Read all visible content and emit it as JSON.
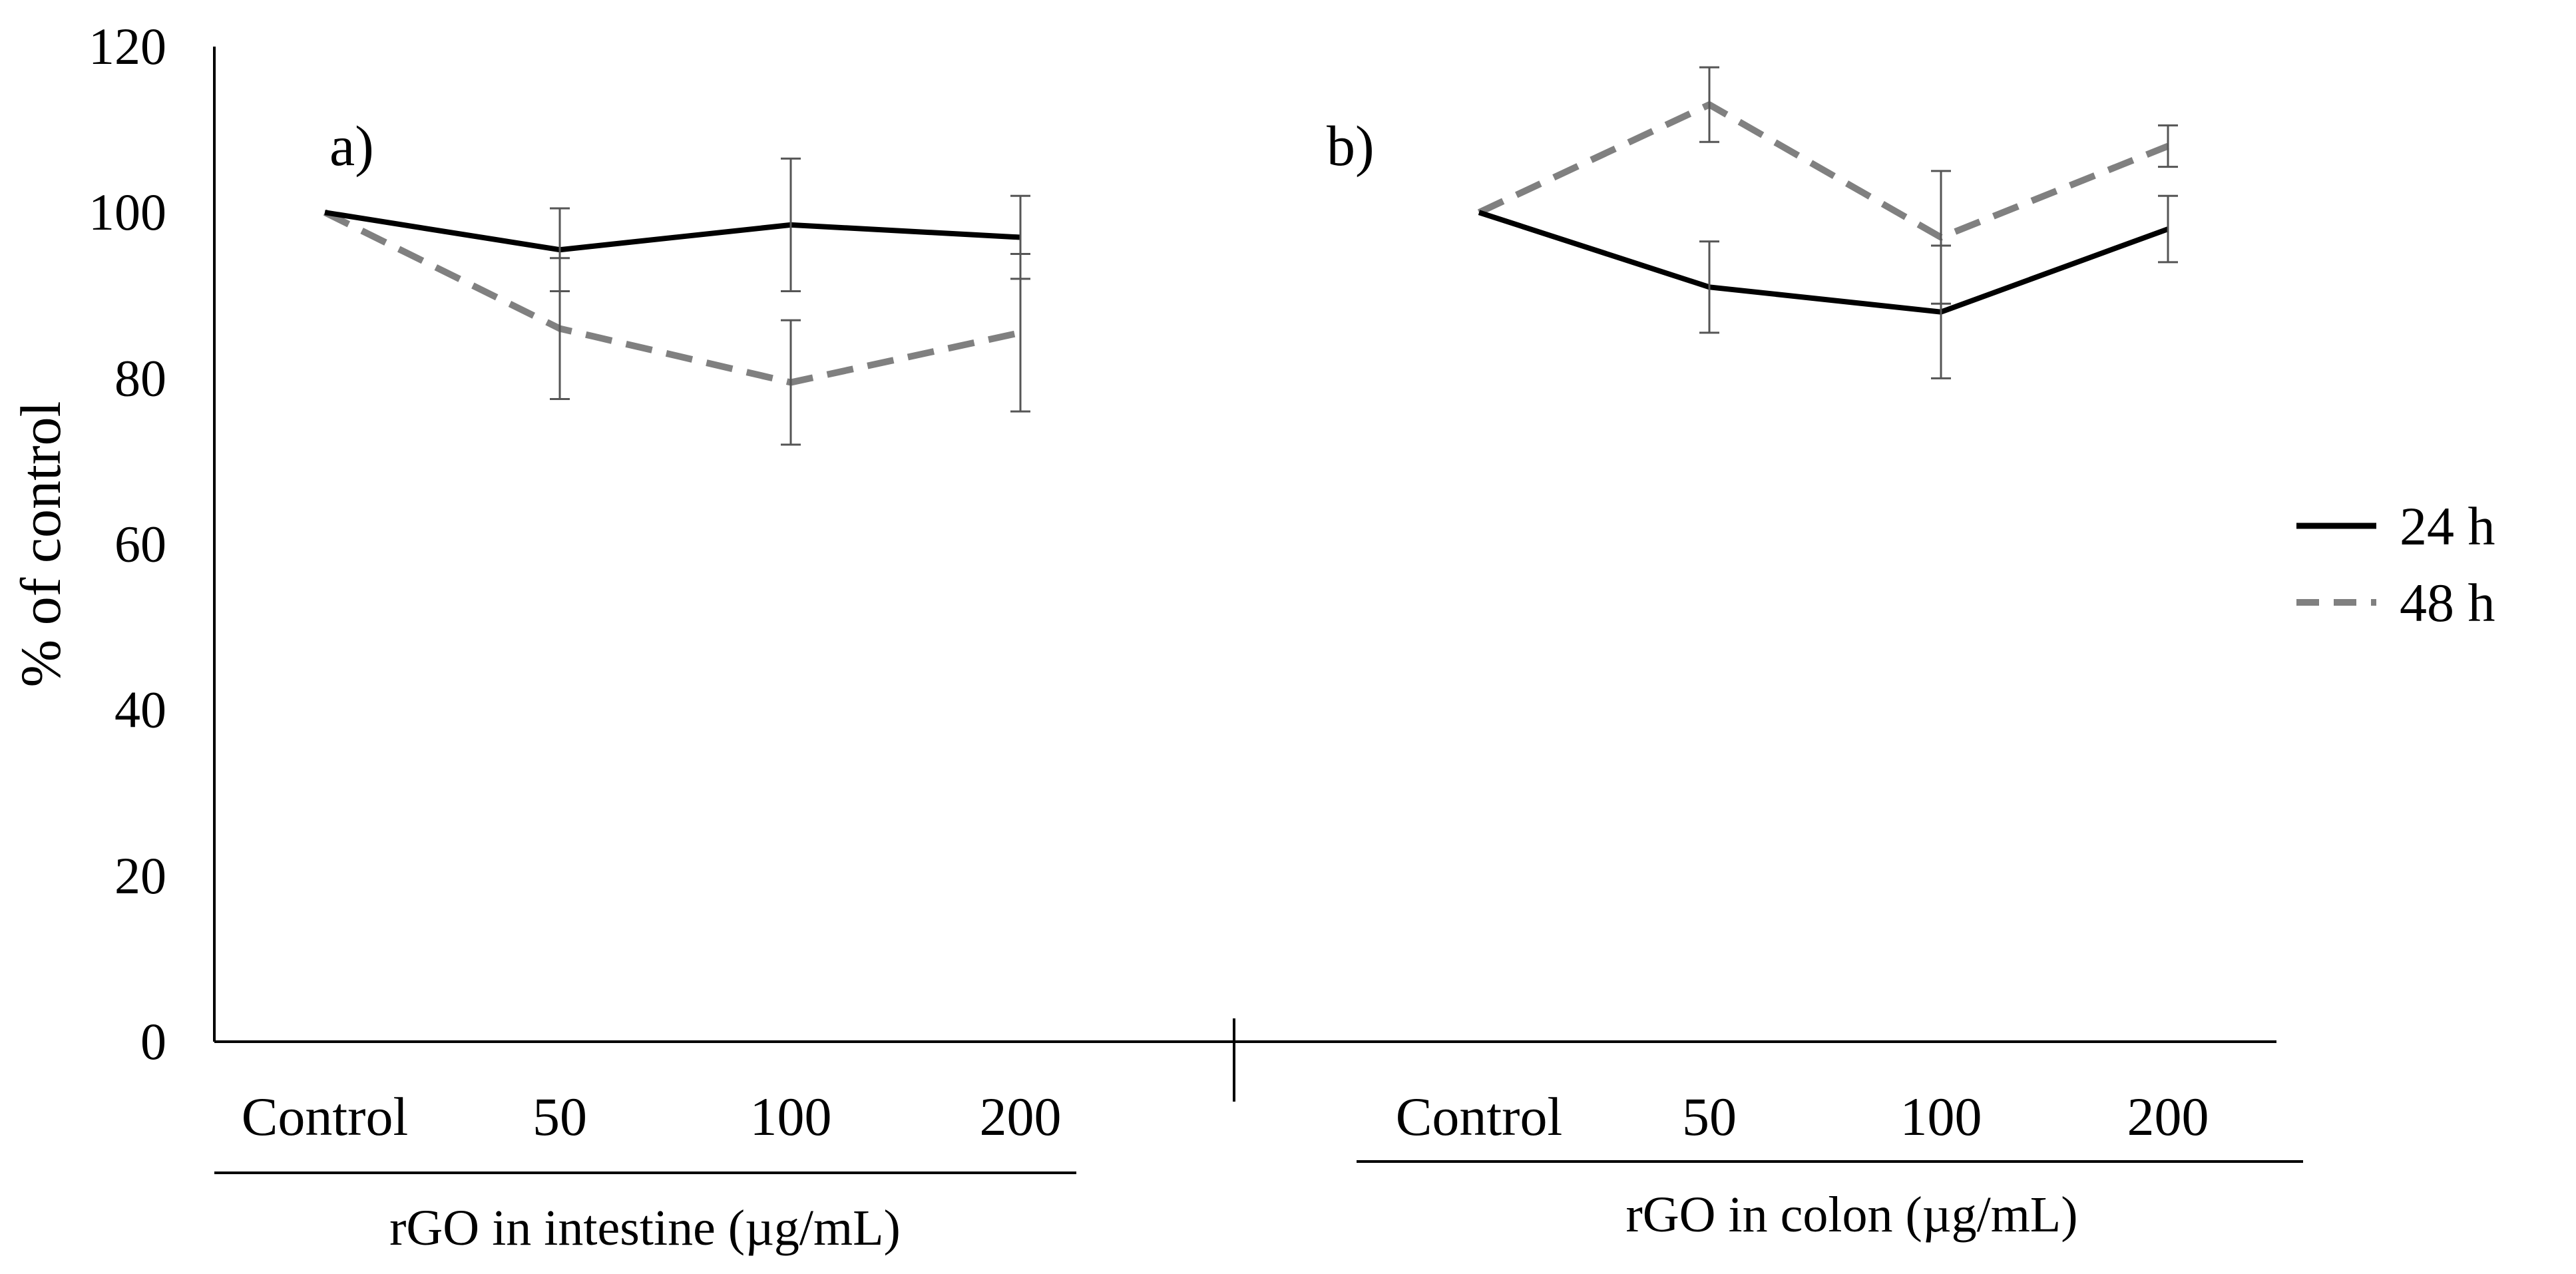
{
  "chart_data": {
    "type": "line",
    "ylabel": "% of control",
    "ylim": [
      0,
      120
    ],
    "yticks": [
      0,
      20,
      40,
      60,
      80,
      100,
      120
    ],
    "legend": [
      {
        "name": "24 h",
        "color": "#000000",
        "style": "solid"
      },
      {
        "name": "48 h",
        "color": "#808080",
        "style": "dashed"
      }
    ],
    "legend_position": "right",
    "panels": [
      {
        "label": "a)",
        "categories": [
          "Control",
          "50",
          "100",
          "200"
        ],
        "group_label": "rGO in intestine (µg/mL)",
        "series": [
          {
            "name": "24 h",
            "values": [
              100,
              95.5,
              98.5,
              97
            ],
            "errors": [
              0,
              5,
              8,
              5
            ]
          },
          {
            "name": "48 h",
            "values": [
              100,
              86,
              79.5,
              85.5
            ],
            "errors": [
              0,
              8.5,
              7.5,
              9.5
            ]
          }
        ]
      },
      {
        "label": "b)",
        "categories": [
          "Control",
          "50",
          "100",
          "200"
        ],
        "group_label": "rGO in colon (µg/mL)",
        "series": [
          {
            "name": "24 h",
            "values": [
              100,
              91,
              88,
              98
            ],
            "errors": [
              0,
              5.5,
              8,
              4
            ]
          },
          {
            "name": "48 h",
            "values": [
              100,
              113,
              97,
              108
            ],
            "errors": [
              0,
              4.5,
              8,
              2.5
            ]
          }
        ]
      }
    ]
  }
}
